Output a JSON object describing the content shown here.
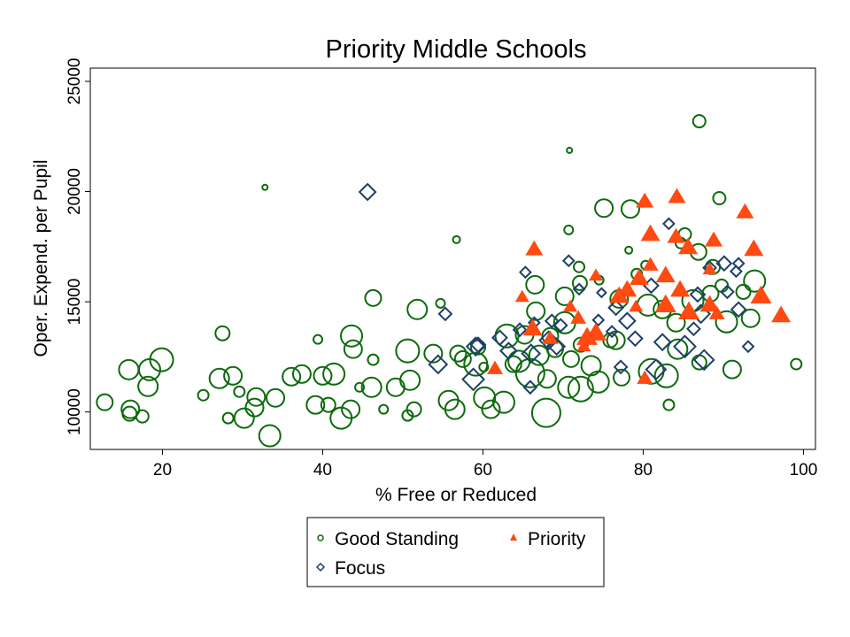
{
  "chart_data": {
    "type": "scatter",
    "title": "Priority Middle Schools",
    "xlabel": "% Free or Reduced",
    "ylabel": "Oper. Expend. per Pupil",
    "xlim": [
      11,
      101.5
    ],
    "ylim": [
      8300,
      25600
    ],
    "xticks": [
      "20",
      "40",
      "60",
      "80",
      "100"
    ],
    "xtick_values": [
      20,
      40,
      60,
      80,
      100
    ],
    "yticks": [
      "10000",
      "15000",
      "20000",
      "25000"
    ],
    "ytick_values": [
      10000,
      15000,
      20000,
      25000
    ],
    "grid": false,
    "legend_placement": "bottom",
    "colors": {
      "good": "#0c6a0c",
      "priority": "#ff4a12",
      "focus": "#1e3f6b"
    },
    "series": [
      {
        "name": "Good Standing",
        "marker": "circle",
        "points": [
          [
            12.8,
            10440,
            9
          ],
          [
            15.8,
            11920,
            11
          ],
          [
            16.0,
            10120,
            10
          ],
          [
            15.9,
            9920,
            8
          ],
          [
            17.5,
            9800,
            7
          ],
          [
            18.4,
            11920,
            12
          ],
          [
            18.2,
            11160,
            11
          ],
          [
            19.9,
            12370,
            13
          ],
          [
            25.1,
            10760,
            6
          ],
          [
            27.1,
            11520,
            11
          ],
          [
            27.5,
            13570,
            8
          ],
          [
            28.8,
            11640,
            10
          ],
          [
            28.2,
            9720,
            6
          ],
          [
            29.6,
            10920,
            6
          ],
          [
            30.2,
            9720,
            11
          ],
          [
            31.5,
            10200,
            10
          ],
          [
            31.7,
            10680,
            10
          ],
          [
            33.4,
            8920,
            12
          ],
          [
            32.8,
            20190,
            3
          ],
          [
            34.1,
            10640,
            10
          ],
          [
            36.1,
            11600,
            10
          ],
          [
            37.4,
            11720,
            10
          ],
          [
            39.1,
            10320,
            10
          ],
          [
            39.4,
            13290,
            5
          ],
          [
            40.0,
            11640,
            10
          ],
          [
            41.4,
            11720,
            12
          ],
          [
            40.7,
            10320,
            8
          ],
          [
            42.3,
            9720,
            12
          ],
          [
            43.5,
            10120,
            10
          ],
          [
            43.8,
            12850,
            10
          ],
          [
            43.6,
            13450,
            12
          ],
          [
            44.6,
            11120,
            5
          ],
          [
            46.1,
            11120,
            11
          ],
          [
            46.3,
            12370,
            6
          ],
          [
            46.3,
            15170,
            9
          ],
          [
            47.6,
            10120,
            5
          ],
          [
            49.1,
            11120,
            10
          ],
          [
            50.6,
            12770,
            13
          ],
          [
            50.9,
            11440,
            11
          ],
          [
            51.8,
            14650,
            11
          ],
          [
            50.6,
            9840,
            6
          ],
          [
            51.4,
            10120,
            8
          ],
          [
            53.8,
            12650,
            10
          ],
          [
            54.7,
            14930,
            5
          ],
          [
            55.7,
            10520,
            11
          ],
          [
            56.5,
            10120,
            11
          ],
          [
            56.7,
            17820,
            4
          ],
          [
            56.9,
            12650,
            9
          ],
          [
            59.4,
            12930,
            8
          ],
          [
            60.1,
            12040,
            5
          ],
          [
            60.2,
            10640,
            12
          ],
          [
            61.0,
            10120,
            10
          ],
          [
            62.6,
            10440,
            12
          ],
          [
            63.0,
            13450,
            13
          ],
          [
            67.9,
            9960,
            16
          ],
          [
            63.8,
            12170,
            9
          ],
          [
            70.8,
            21870,
            3
          ],
          [
            70.7,
            18260,
            5
          ],
          [
            75.1,
            19250,
            10
          ],
          [
            78.4,
            19210,
            10
          ],
          [
            87.0,
            23190,
            7
          ],
          [
            89.5,
            19700,
            7
          ],
          [
            99.1,
            12170,
            6
          ],
          [
            91.1,
            11930,
            10
          ],
          [
            83.2,
            10320,
            6
          ],
          [
            82.9,
            11640,
            13
          ],
          [
            81.0,
            11840,
            14
          ],
          [
            77.3,
            11560,
            9
          ],
          [
            74.4,
            11360,
            12
          ],
          [
            72.2,
            11040,
            14
          ],
          [
            70.7,
            11120,
            12
          ],
          [
            65.9,
            11760,
            16
          ],
          [
            67.0,
            12570,
            11
          ],
          [
            69.0,
            12850,
            9
          ],
          [
            72.2,
            13050,
            8
          ],
          [
            76.6,
            13250,
            10
          ],
          [
            84.3,
            12850,
            11
          ],
          [
            87.0,
            12250,
            8
          ],
          [
            90.4,
            14090,
            12
          ],
          [
            93.9,
            15940,
            12
          ],
          [
            92.5,
            15450,
            8
          ],
          [
            89.8,
            15730,
            7
          ],
          [
            88.7,
            16580,
            8
          ],
          [
            86.9,
            17260,
            9
          ],
          [
            85.2,
            18060,
            7
          ],
          [
            84.7,
            17660,
            6
          ],
          [
            78.2,
            17340,
            4
          ],
          [
            80.3,
            16660,
            5
          ],
          [
            79.2,
            16260,
            6
          ],
          [
            74.5,
            15980,
            5
          ],
          [
            72.0,
            16580,
            6
          ],
          [
            72.1,
            15850,
            8
          ],
          [
            70.2,
            15250,
            10
          ],
          [
            66.5,
            15770,
            10
          ],
          [
            66.6,
            14570,
            10
          ],
          [
            70.2,
            14050,
            12
          ],
          [
            68.4,
            13450,
            9
          ],
          [
            75.9,
            13250,
            8
          ],
          [
            77.0,
            15130,
            10
          ],
          [
            80.6,
            14850,
            12
          ],
          [
            82.4,
            14650,
            10
          ],
          [
            84.1,
            14050,
            10
          ],
          [
            86.2,
            15050,
            12
          ],
          [
            88.4,
            15370,
            9
          ],
          [
            93.4,
            14250,
            10
          ],
          [
            59.1,
            12170,
            13
          ],
          [
            57.5,
            12400,
            9
          ],
          [
            64.5,
            12300,
            12
          ],
          [
            65.2,
            13500,
            10
          ],
          [
            73.5,
            12100,
            11
          ],
          [
            71.0,
            12400,
            9
          ],
          [
            68.0,
            11500,
            10
          ]
        ]
      },
      {
        "name": "Priority",
        "marker": "triangle",
        "points": [
          [
            80.2,
            19544,
            10
          ],
          [
            84.2,
            19750,
            10
          ],
          [
            92.7,
            19060,
            10
          ],
          [
            80.9,
            18060,
            11
          ],
          [
            84.1,
            17940,
            10
          ],
          [
            88.8,
            17780,
            10
          ],
          [
            85.6,
            17460,
            11
          ],
          [
            93.8,
            17380,
            11
          ],
          [
            66.4,
            17380,
            10
          ],
          [
            80.9,
            16660,
            9
          ],
          [
            74.1,
            16180,
            8
          ],
          [
            82.8,
            16180,
            11
          ],
          [
            79.5,
            16060,
            11
          ],
          [
            64.9,
            15210,
            8
          ],
          [
            88.3,
            16460,
            8
          ],
          [
            84.6,
            15530,
            11
          ],
          [
            78.0,
            15530,
            11
          ],
          [
            77.0,
            15250,
            11
          ],
          [
            94.7,
            15250,
            12
          ],
          [
            70.9,
            14770,
            8
          ],
          [
            79.1,
            14770,
            8
          ],
          [
            82.8,
            14850,
            12
          ],
          [
            88.3,
            14850,
            11
          ],
          [
            71.9,
            14250,
            9
          ],
          [
            85.7,
            14530,
            12
          ],
          [
            89.2,
            14450,
            9
          ],
          [
            97.2,
            14370,
            11
          ],
          [
            66.2,
            13770,
            11
          ],
          [
            68.4,
            13330,
            9
          ],
          [
            73.0,
            13370,
            12
          ],
          [
            74.1,
            13570,
            12
          ],
          [
            72.6,
            12970,
            8
          ],
          [
            61.5,
            11960,
            9
          ],
          [
            80.2,
            11520,
            9
          ]
        ]
      },
      {
        "name": "Focus",
        "marker": "diamond",
        "points": [
          [
            45.6,
            19980,
            9
          ],
          [
            55.3,
            14450,
            7
          ],
          [
            54.4,
            12160,
            10
          ],
          [
            58.8,
            11480,
            12
          ],
          [
            59.4,
            13050,
            8
          ],
          [
            83.2,
            18540,
            6
          ],
          [
            65.3,
            16340,
            6
          ],
          [
            70.7,
            16860,
            6
          ],
          [
            72.0,
            15570,
            6
          ],
          [
            74.8,
            15410,
            5
          ],
          [
            81.0,
            15730,
            8
          ],
          [
            88.3,
            16540,
            7
          ],
          [
            90.1,
            16740,
            8
          ],
          [
            91.9,
            16740,
            6
          ],
          [
            91.6,
            16380,
            6
          ],
          [
            90.5,
            15450,
            7
          ],
          [
            91.9,
            14650,
            8
          ],
          [
            86.8,
            15330,
            8
          ],
          [
            87.2,
            14450,
            10
          ],
          [
            86.3,
            13770,
            7
          ],
          [
            76.6,
            14730,
            8
          ],
          [
            78.0,
            14130,
            9
          ],
          [
            76.1,
            13650,
            6
          ],
          [
            74.4,
            14170,
            6
          ],
          [
            69.7,
            13930,
            7
          ],
          [
            68.6,
            14130,
            7
          ],
          [
            66.4,
            14050,
            6
          ],
          [
            68.2,
            13250,
            10
          ],
          [
            64.6,
            13730,
            7
          ],
          [
            62.1,
            13370,
            8
          ],
          [
            63.2,
            12770,
            9
          ],
          [
            66.0,
            12650,
            10
          ],
          [
            69.2,
            12970,
            9
          ],
          [
            59.1,
            12970,
            10
          ],
          [
            65.9,
            11120,
            7
          ],
          [
            77.2,
            12040,
            7
          ],
          [
            82.4,
            13170,
            9
          ],
          [
            85.2,
            12970,
            12
          ],
          [
            87.6,
            12360,
            11
          ],
          [
            81.6,
            11930,
            11
          ],
          [
            93.1,
            12970,
            6
          ],
          [
            79.0,
            13330,
            8
          ]
        ]
      }
    ],
    "legend": {
      "entries": [
        "Good Standing",
        "Priority",
        "Focus"
      ]
    }
  }
}
